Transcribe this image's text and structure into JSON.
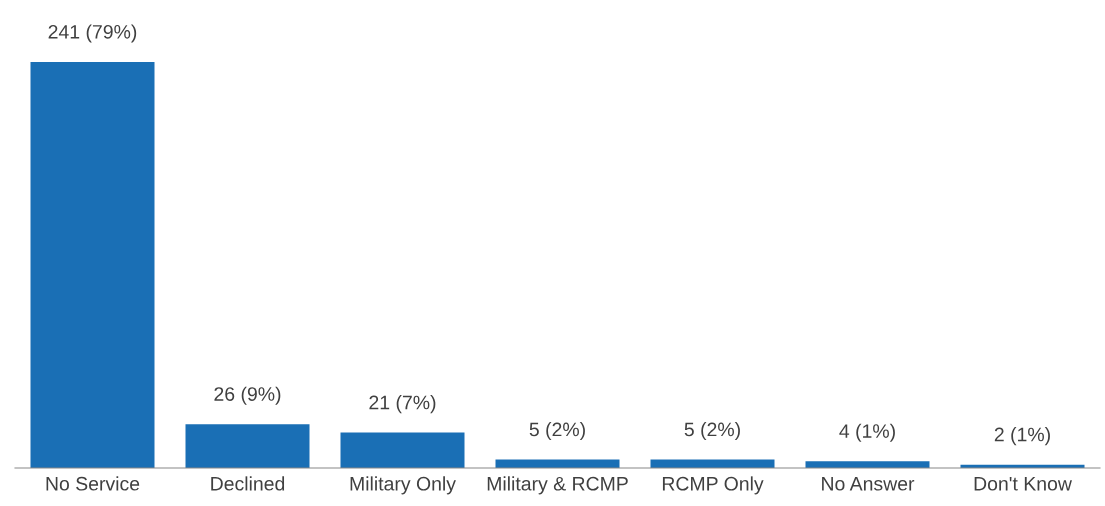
{
  "chart_data": {
    "type": "bar",
    "categories": [
      "No Service",
      "Declined",
      "Military Only",
      "Military & RCMP",
      "RCMP Only",
      "No Answer",
      "Don't Know"
    ],
    "values": [
      241,
      26,
      21,
      5,
      5,
      4,
      2
    ],
    "value_labels": [
      "241 (79%)",
      "26 (9%)",
      "21 (7%)",
      "5 (2%)",
      "5 (2%)",
      "4 (1%)",
      "2 (1%)"
    ],
    "color": "#1a6fb5"
  }
}
